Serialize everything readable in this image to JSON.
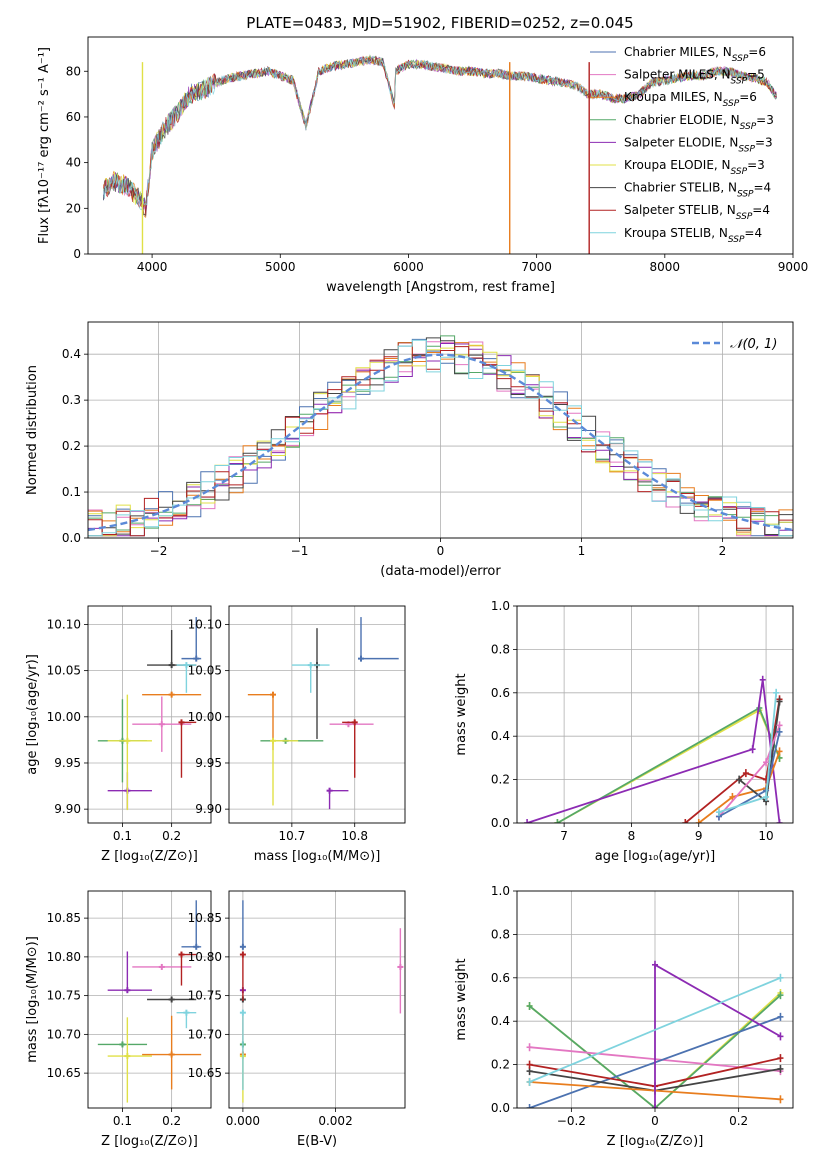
{
  "title": "PLATE=0483, MJD=51902, FIBERID=0252, z=0.045",
  "colors": [
    "#4c72b0",
    "#e377c2",
    "#e87d1e",
    "#55a868",
    "#8c2bb3",
    "#e0e047",
    "#444444",
    "#b22222",
    "#7fd3de"
  ],
  "legend_spectrum": [
    {
      "name": "Chabrier MILES, N",
      "sub": "SSP",
      "tail": "=6",
      "color": "#4c72b0"
    },
    {
      "name": "Salpeter MILES, N",
      "sub": "SSP",
      "tail": "=5",
      "color": "#e377c2"
    },
    {
      "name": "Kroupa MILES, N",
      "sub": "SSP",
      "tail": "=6",
      "color": "#e87d1e"
    },
    {
      "name": "Chabrier ELODIE, N",
      "sub": "SSP",
      "tail": "=3",
      "color": "#55a868"
    },
    {
      "name": "Salpeter ELODIE, N",
      "sub": "SSP",
      "tail": "=3",
      "color": "#8c2bb3"
    },
    {
      "name": "Kroupa ELODIE, N",
      "sub": "SSP",
      "tail": "=3",
      "color": "#e0e047"
    },
    {
      "name": "Chabrier STELIB, N",
      "sub": "SSP",
      "tail": "=4",
      "color": "#444444"
    },
    {
      "name": "Salpeter STELIB, N",
      "sub": "SSP",
      "tail": "=4",
      "color": "#b22222"
    },
    {
      "name": "Kroupa STELIB, N",
      "sub": "SSP",
      "tail": "=4",
      "color": "#7fd3de"
    }
  ],
  "chart_data": [
    {
      "type": "line",
      "id": "spectrum",
      "xlabel": "wavelength [Angstrom, rest frame]",
      "ylabel": "Flux [fλ10⁻¹⁷ erg cm⁻² s⁻¹ A⁻¹]",
      "xlim": [
        3500,
        9000
      ],
      "ylim": [
        0,
        95
      ],
      "xticks": [
        4000,
        5000,
        6000,
        7000,
        8000,
        9000
      ],
      "yticks": [
        0,
        20,
        40,
        60,
        80
      ],
      "x": [
        3620,
        3700,
        3800,
        3900,
        3950,
        4000,
        4100,
        4200,
        4300,
        4400,
        4500,
        4600,
        4700,
        4800,
        4900,
        5000,
        5100,
        5200,
        5300,
        5400,
        5500,
        5600,
        5700,
        5800,
        5890,
        5900,
        6000,
        6100,
        6200,
        6300,
        6400,
        6500,
        6600,
        6700,
        6800,
        6900,
        7000,
        7100,
        7200,
        7300,
        7400,
        7500,
        7600,
        7700,
        7800,
        7900,
        8000,
        8100,
        8200,
        8300,
        8400,
        8500,
        8600,
        8700,
        8800,
        8880
      ],
      "y": [
        28,
        32,
        30,
        24,
        20,
        45,
        55,
        62,
        70,
        72,
        75,
        77,
        78,
        79,
        80,
        78,
        76,
        56,
        80,
        82,
        83,
        84,
        85,
        84,
        65,
        80,
        83,
        83,
        82,
        81,
        80,
        80,
        79,
        79,
        78,
        78,
        77,
        76,
        75,
        74,
        70,
        70,
        68,
        68,
        70,
        75,
        76,
        77,
        78,
        78,
        80,
        80,
        78,
        77,
        75,
        68
      ],
      "dips": [
        {
          "x": 3925,
          "color": "#e0e047"
        },
        {
          "x": 6790,
          "color": "#e87d1e"
        },
        {
          "x": 7410,
          "color": "#b22222"
        }
      ]
    },
    {
      "type": "step",
      "id": "residual-histogram",
      "xlabel": "(data-model)/error",
      "ylabel": "Normed distribution",
      "xlim": [
        -2.5,
        2.5
      ],
      "ylim": [
        0,
        0.47
      ],
      "xticks": [
        -2,
        -1,
        0,
        1,
        2
      ],
      "yticks": [
        0.0,
        0.1,
        0.2,
        0.3,
        0.4
      ],
      "bin_width": 0.1,
      "gaussian_label": "𝒩(0, 1)",
      "gaussian_color": "#5b8ad8"
    },
    {
      "type": "scatter",
      "id": "age-vs-Z",
      "xlabel": "Z [log₁₀(Z/Z⊙)]",
      "ylabel": "age  [log₁₀(age/yr)]",
      "xlim": [
        0.03,
        0.28
      ],
      "ylim": [
        9.885,
        10.12
      ],
      "xticks": [
        0.1,
        0.2
      ],
      "yticks": [
        9.9,
        9.95,
        10.0,
        10.05,
        10.1
      ],
      "points": [
        {
          "x": 0.25,
          "y": 10.063,
          "xerr": [
            0.03,
            0.01
          ],
          "yerr": [
            0.0,
            0.045
          ],
          "color": "#4c72b0"
        },
        {
          "x": 0.18,
          "y": 9.992,
          "xerr": [
            0.06,
            0.06
          ],
          "yerr": [
            0.03,
            0.03
          ],
          "color": "#e377c2"
        },
        {
          "x": 0.2,
          "y": 10.024,
          "xerr": [
            0.06,
            0.06
          ],
          "yerr": [
            0.0,
            0.0
          ],
          "color": "#e87d1e"
        },
        {
          "x": 0.1,
          "y": 9.974,
          "xerr": [
            0.05,
            0.05
          ],
          "yerr": [
            0.045,
            0.045
          ],
          "color": "#55a868"
        },
        {
          "x": 0.11,
          "y": 9.92,
          "xerr": [
            0.04,
            0.05
          ],
          "yerr": [
            0.02,
            0.02
          ],
          "color": "#8c2bb3"
        },
        {
          "x": 0.11,
          "y": 9.974,
          "xerr": [
            0.04,
            0.05
          ],
          "yerr": [
            0.075,
            0.05
          ],
          "color": "#e0e047"
        },
        {
          "x": 0.2,
          "y": 10.056,
          "xerr": [
            0.05,
            0.05
          ],
          "yerr": [
            0.0,
            0.038
          ],
          "color": "#444444"
        },
        {
          "x": 0.22,
          "y": 9.994,
          "xerr": [
            0.0,
            0.03
          ],
          "yerr": [
            0.06,
            0.0
          ],
          "color": "#b22222"
        },
        {
          "x": 0.23,
          "y": 10.056,
          "xerr": [
            0.02,
            0.02
          ],
          "yerr": [
            0.03,
            0.0
          ],
          "color": "#7fd3de"
        }
      ]
    },
    {
      "type": "scatter",
      "id": "age-vs-mass",
      "xlabel": "mass [log₁₀(M/M⊙)]",
      "ylabel": "",
      "xlim": [
        10.6,
        10.88
      ],
      "ylim": [
        9.885,
        10.12
      ],
      "xticks": [
        10.7,
        10.8
      ],
      "yticks": [
        9.9,
        9.95,
        10.0,
        10.05,
        10.1
      ],
      "points": [
        {
          "x": 10.81,
          "y": 10.063,
          "xerr": [
            0.0,
            0.06
          ],
          "yerr": [
            0.0,
            0.045
          ],
          "color": "#4c72b0"
        },
        {
          "x": 10.79,
          "y": 9.992,
          "xerr": [
            0.03,
            0.04
          ],
          "yerr": [
            0.0,
            0.0
          ],
          "color": "#e377c2"
        },
        {
          "x": 10.67,
          "y": 10.024,
          "xerr": [
            0.04,
            0.0
          ],
          "yerr": [
            0.06,
            0.0
          ],
          "color": "#e87d1e"
        },
        {
          "x": 10.69,
          "y": 9.974,
          "xerr": [
            0.04,
            0.06
          ],
          "yerr": [
            0.0,
            0.0
          ],
          "color": "#55a868"
        },
        {
          "x": 10.76,
          "y": 9.92,
          "xerr": [
            0.0,
            0.03
          ],
          "yerr": [
            0.02,
            0.0
          ],
          "color": "#8c2bb3"
        },
        {
          "x": 10.67,
          "y": 9.974,
          "xerr": [
            0.0,
            0.04
          ],
          "yerr": [
            0.07,
            0.0
          ],
          "color": "#e0e047"
        },
        {
          "x": 10.74,
          "y": 10.056,
          "xerr": [
            0.0,
            0.0
          ],
          "yerr": [
            0.08,
            0.04
          ],
          "color": "#444444"
        },
        {
          "x": 10.8,
          "y": 9.994,
          "xerr": [
            0.02,
            0.0
          ],
          "yerr": [
            0.06,
            0.0
          ],
          "color": "#b22222"
        },
        {
          "x": 10.73,
          "y": 10.056,
          "xerr": [
            0.03,
            0.03
          ],
          "yerr": [
            0.03,
            0.0
          ],
          "color": "#7fd3de"
        }
      ]
    },
    {
      "type": "line",
      "id": "massweight-vs-age",
      "xlabel": "age  [log₁₀(age/yr)]",
      "ylabel": "mass weight",
      "xlim": [
        6.3,
        10.4
      ],
      "ylim": [
        0,
        1.0
      ],
      "xticks": [
        7,
        8,
        9,
        10
      ],
      "yticks": [
        0.0,
        0.2,
        0.4,
        0.6,
        0.8,
        1.0
      ],
      "series": [
        {
          "color": "#e0e047",
          "x": [
            6.9,
            9.9,
            10.2
          ],
          "y": [
            0.0,
            0.52,
            0.3
          ]
        },
        {
          "color": "#55a868",
          "x": [
            6.9,
            9.9,
            10.2
          ],
          "y": [
            0.0,
            0.53,
            0.3
          ]
        },
        {
          "color": "#8c2bb3",
          "x": [
            6.45,
            9.8,
            9.95,
            10.2
          ],
          "y": [
            0.0,
            0.34,
            0.66,
            0.0
          ]
        },
        {
          "color": "#b22222",
          "x": [
            8.8,
            9.7,
            10.0,
            10.2
          ],
          "y": [
            0.0,
            0.23,
            0.2,
            0.57
          ]
        },
        {
          "color": "#e87d1e",
          "x": [
            9.0,
            9.5,
            10.0,
            10.2
          ],
          "y": [
            0.0,
            0.12,
            0.16,
            0.33
          ]
        },
        {
          "color": "#444444",
          "x": [
            9.6,
            10.0,
            10.2
          ],
          "y": [
            0.2,
            0.1,
            0.56
          ]
        },
        {
          "color": "#e377c2",
          "x": [
            9.3,
            10.0,
            10.2
          ],
          "y": [
            0.03,
            0.28,
            0.45
          ]
        },
        {
          "color": "#4c72b0",
          "x": [
            9.3,
            10.0,
            10.2
          ],
          "y": [
            0.03,
            0.15,
            0.42
          ]
        },
        {
          "color": "#7fd3de",
          "x": [
            9.3,
            10.0,
            10.15
          ],
          "y": [
            0.05,
            0.12,
            0.6
          ]
        }
      ]
    },
    {
      "type": "scatter",
      "id": "mass-vs-Z",
      "xlabel": "Z [log₁₀(Z/Z⊙)]",
      "ylabel": "mass [log₁₀(M/M⊙)]",
      "xlim": [
        0.03,
        0.28
      ],
      "ylim": [
        10.605,
        10.885
      ],
      "xticks": [
        0.1,
        0.2
      ],
      "yticks": [
        10.65,
        10.7,
        10.75,
        10.8,
        10.85
      ],
      "points": [
        {
          "x": 0.25,
          "y": 10.813,
          "xerr": [
            0.03,
            0.01
          ],
          "yerr": [
            0.0,
            0.06
          ],
          "color": "#4c72b0"
        },
        {
          "x": 0.18,
          "y": 10.787,
          "xerr": [
            0.06,
            0.06
          ],
          "yerr": [
            0.0,
            0.0
          ],
          "color": "#e377c2"
        },
        {
          "x": 0.2,
          "y": 10.674,
          "xerr": [
            0.06,
            0.06
          ],
          "yerr": [
            0.045,
            0.05
          ],
          "color": "#e87d1e"
        },
        {
          "x": 0.1,
          "y": 10.687,
          "xerr": [
            0.05,
            0.05
          ],
          "yerr": [
            0.0,
            0.0
          ],
          "color": "#55a868"
        },
        {
          "x": 0.11,
          "y": 10.757,
          "xerr": [
            0.04,
            0.05
          ],
          "yerr": [
            0.0,
            0.05
          ],
          "color": "#8c2bb3"
        },
        {
          "x": 0.11,
          "y": 10.672,
          "xerr": [
            0.04,
            0.05
          ],
          "yerr": [
            0.06,
            0.05
          ],
          "color": "#e0e047"
        },
        {
          "x": 0.2,
          "y": 10.745,
          "xerr": [
            0.05,
            0.05
          ],
          "yerr": [
            0.0,
            0.0
          ],
          "color": "#444444"
        },
        {
          "x": 0.22,
          "y": 10.803,
          "xerr": [
            0.0,
            0.03
          ],
          "yerr": [
            0.04,
            0.0
          ],
          "color": "#b22222"
        },
        {
          "x": 0.23,
          "y": 10.728,
          "xerr": [
            0.02,
            0.02
          ],
          "yerr": [
            0.02,
            0.0
          ],
          "color": "#7fd3de"
        }
      ]
    },
    {
      "type": "scatter",
      "id": "mass-vs-EBV",
      "xlabel": "E(B-V)",
      "ylabel": "",
      "xlim": [
        -0.0003,
        0.0035
      ],
      "ylim": [
        10.605,
        10.885
      ],
      "xticks": [
        0.0,
        0.002
      ],
      "xtick_labels": [
        "0.000",
        "0.002"
      ],
      "yticks": [
        10.65,
        10.7,
        10.75,
        10.8,
        10.85
      ],
      "points": [
        {
          "x": 0.0,
          "y": 10.813,
          "xerr": [
            0,
            0
          ],
          "yerr": [
            0.0,
            0.06
          ],
          "color": "#4c72b0"
        },
        {
          "x": 0.0034,
          "y": 10.787,
          "xerr": [
            0,
            0
          ],
          "yerr": [
            0.06,
            0.05
          ],
          "color": "#e377c2"
        },
        {
          "x": 0.0,
          "y": 10.674,
          "xerr": [
            0,
            0
          ],
          "yerr": [
            0.045,
            0.05
          ],
          "color": "#e87d1e"
        },
        {
          "x": 0.0,
          "y": 10.687,
          "xerr": [
            0,
            0
          ],
          "yerr": [
            0.0,
            0.0
          ],
          "color": "#55a868"
        },
        {
          "x": 0.0,
          "y": 10.757,
          "xerr": [
            0,
            0
          ],
          "yerr": [
            0.0,
            0.0
          ],
          "color": "#8c2bb3"
        },
        {
          "x": 0.0,
          "y": 10.672,
          "xerr": [
            0,
            0
          ],
          "yerr": [
            0.06,
            0.0
          ],
          "color": "#e0e047"
        },
        {
          "x": 0.0,
          "y": 10.745,
          "xerr": [
            0,
            0
          ],
          "yerr": [
            0.0,
            0.0
          ],
          "color": "#444444"
        },
        {
          "x": 0.0,
          "y": 10.803,
          "xerr": [
            0,
            0
          ],
          "yerr": [
            0.06,
            0.0
          ],
          "color": "#b22222"
        },
        {
          "x": 0.0,
          "y": 10.728,
          "xerr": [
            0,
            0
          ],
          "yerr": [
            0.1,
            0.0
          ],
          "color": "#7fd3de"
        }
      ]
    },
    {
      "type": "line",
      "id": "massweight-vs-Z",
      "xlabel": "Z [log₁₀(Z/Z⊙)]",
      "ylabel": "mass weight",
      "xlim": [
        -0.33,
        0.33
      ],
      "ylim": [
        0,
        1.0
      ],
      "xticks": [
        -0.2,
        0.0,
        0.2
      ],
      "yticks": [
        0.0,
        0.2,
        0.4,
        0.6,
        0.8,
        1.0
      ],
      "series": [
        {
          "color": "#e0e047",
          "x": [
            -0.3,
            0.0,
            0.3
          ],
          "y": [
            0.47,
            0.0,
            0.53
          ]
        },
        {
          "color": "#55a868",
          "x": [
            -0.3,
            0.0,
            0.3
          ],
          "y": [
            0.47,
            0.0,
            0.52
          ]
        },
        {
          "color": "#e377c2",
          "x": [
            -0.3,
            0.3
          ],
          "y": [
            0.28,
            0.17
          ]
        },
        {
          "color": "#4c72b0",
          "x": [
            -0.3,
            0.3
          ],
          "y": [
            0.0,
            0.42
          ]
        },
        {
          "color": "#444444",
          "x": [
            -0.3,
            0.0,
            0.3
          ],
          "y": [
            0.17,
            0.08,
            0.18
          ]
        },
        {
          "color": "#b22222",
          "x": [
            -0.3,
            0.0,
            0.3
          ],
          "y": [
            0.2,
            0.1,
            0.23
          ]
        },
        {
          "color": "#e87d1e",
          "x": [
            -0.3,
            0.3
          ],
          "y": [
            0.12,
            0.04
          ]
        },
        {
          "color": "#8c2bb3",
          "x": [
            0.0,
            0.0,
            0.3
          ],
          "y": [
            0.0,
            0.66,
            0.33
          ]
        },
        {
          "color": "#7fd3de",
          "x": [
            -0.3,
            0.3
          ],
          "y": [
            0.12,
            0.6
          ]
        }
      ]
    }
  ]
}
